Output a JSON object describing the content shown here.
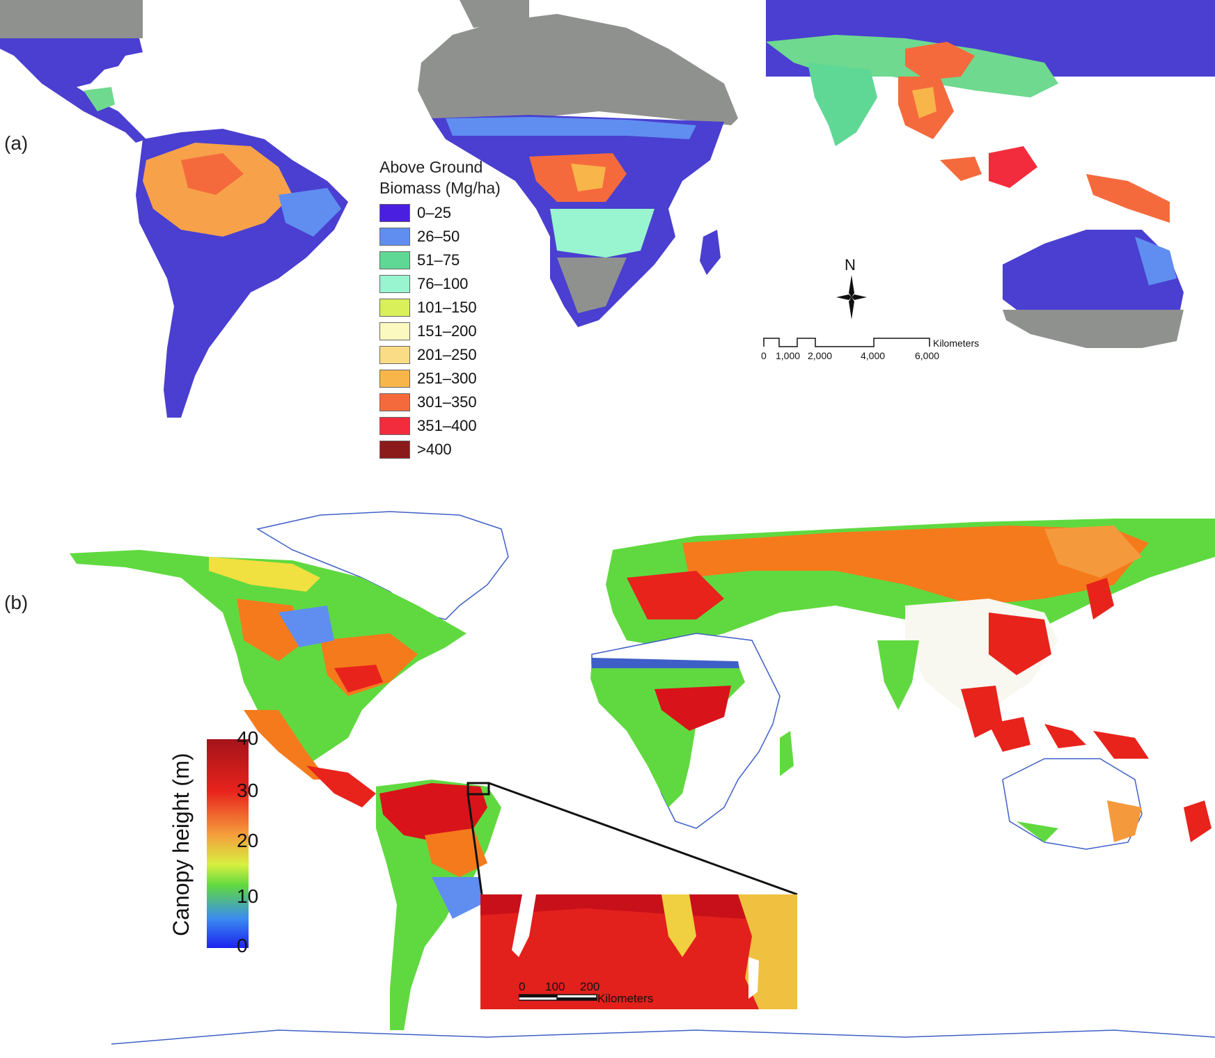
{
  "panel_a": {
    "label": "(a)",
    "legend": {
      "title_line1": "Above Ground",
      "title_line2": "Biomass (Mg/ha)",
      "items": [
        {
          "label": "0–25",
          "color": "#4a1fe0"
        },
        {
          "label": "26–50",
          "color": "#5f8ef0"
        },
        {
          "label": "51–75",
          "color": "#5fd896"
        },
        {
          "label": "76–100",
          "color": "#98f5d0"
        },
        {
          "label": "101–150",
          "color": "#d9f05a"
        },
        {
          "label": "151–200",
          "color": "#fbf8c0"
        },
        {
          "label": "201–250",
          "color": "#fbdc86"
        },
        {
          "label": "251–300",
          "color": "#f8b54a"
        },
        {
          "label": "301–350",
          "color": "#f56a3c"
        },
        {
          "label": "351–400",
          "color": "#f22c3c"
        },
        {
          "label": ">400",
          "color": "#8b1a1a"
        }
      ]
    },
    "north_label": "N",
    "scale_bar": {
      "unit": "Kilometers",
      "ticks": [
        "0",
        "1,000",
        "2,000",
        "4,000",
        "6,000"
      ]
    }
  },
  "panel_b": {
    "label": "(b)",
    "colorbar": {
      "title": "Canopy height (m)",
      "ticks": [
        "40",
        "30",
        "20",
        "10",
        "0"
      ]
    },
    "inset_scale": {
      "ticks": [
        "0",
        "100",
        "200"
      ],
      "unit": "Kilometers"
    }
  },
  "colors": {
    "no_data_gray": "#8f918f",
    "coastline_blue": "#3e5fc7",
    "low_biomass": "#4a2fd0",
    "high_canopy": "#e8231c"
  }
}
